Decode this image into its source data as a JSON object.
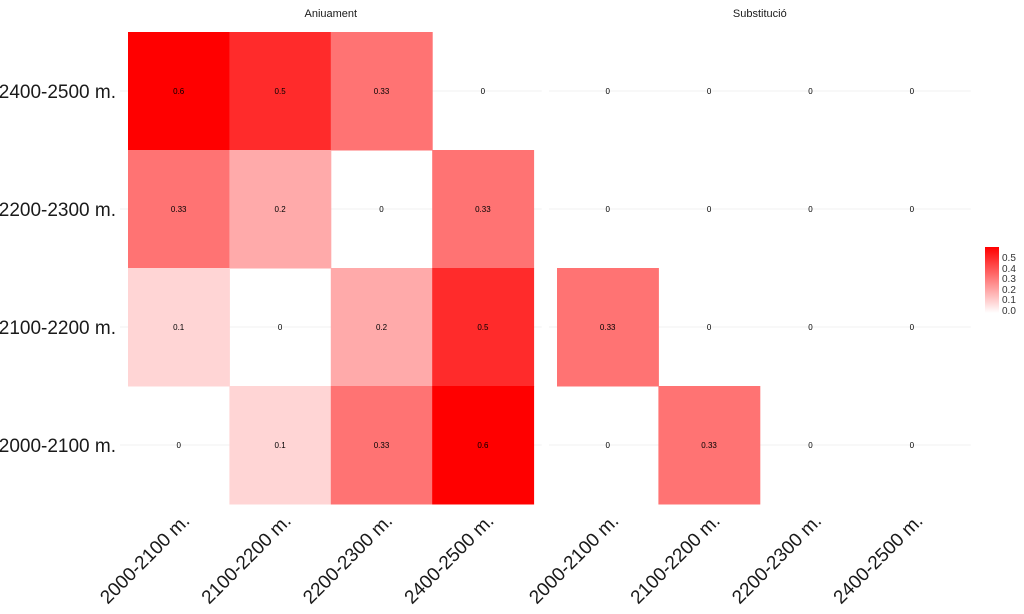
{
  "chart_data": {
    "type": "heatmap",
    "facets": [
      "Aniuament",
      "Substitució"
    ],
    "x_categories": [
      "2000-2100 m.",
      "2100-2200 m.",
      "2200-2300 m.",
      "2400-2500 m."
    ],
    "y_categories": [
      "2000-2100 m.",
      "2100-2200 m.",
      "2200-2300 m.",
      "2400-2500 m."
    ],
    "values": {
      "Aniuament": [
        {
          "y": "2400-2500 m.",
          "row": [
            0.6,
            0.5,
            0.33,
            0
          ]
        },
        {
          "y": "2200-2300 m.",
          "row": [
            0.33,
            0.2,
            0,
            0.33
          ]
        },
        {
          "y": "2100-2200 m.",
          "row": [
            0.1,
            0,
            0.2,
            0.5
          ]
        },
        {
          "y": "2000-2100 m.",
          "row": [
            0,
            0.1,
            0.33,
            0.6
          ]
        }
      ],
      "Substitució": [
        {
          "y": "2400-2500 m.",
          "row": [
            0,
            0,
            0,
            0
          ]
        },
        {
          "y": "2200-2300 m.",
          "row": [
            0,
            0,
            0,
            0
          ]
        },
        {
          "y": "2100-2200 m.",
          "row": [
            0.33,
            0,
            0,
            0
          ]
        },
        {
          "y": "2000-2100 m.",
          "row": [
            0,
            0.33,
            0,
            0
          ]
        }
      ]
    },
    "tile_visibility": {
      "Aniuament": [
        [
          true,
          true,
          true,
          false
        ],
        [
          true,
          true,
          false,
          true
        ],
        [
          true,
          false,
          true,
          true
        ],
        [
          false,
          true,
          true,
          true
        ]
      ],
      "Substitució": [
        [
          false,
          false,
          false,
          false
        ],
        [
          false,
          false,
          false,
          false
        ],
        [
          true,
          false,
          false,
          false
        ],
        [
          false,
          true,
          false,
          false
        ]
      ]
    },
    "colorscale": {
      "low": "#ffffff",
      "high": "#ff0000",
      "min": 0,
      "max": 0.6
    },
    "legend": {
      "ticks": [
        "0.5",
        "0.4",
        "0.3",
        "0.2",
        "0.1",
        "0.0"
      ],
      "position": "right"
    },
    "xlabel": "",
    "ylabel": ""
  }
}
